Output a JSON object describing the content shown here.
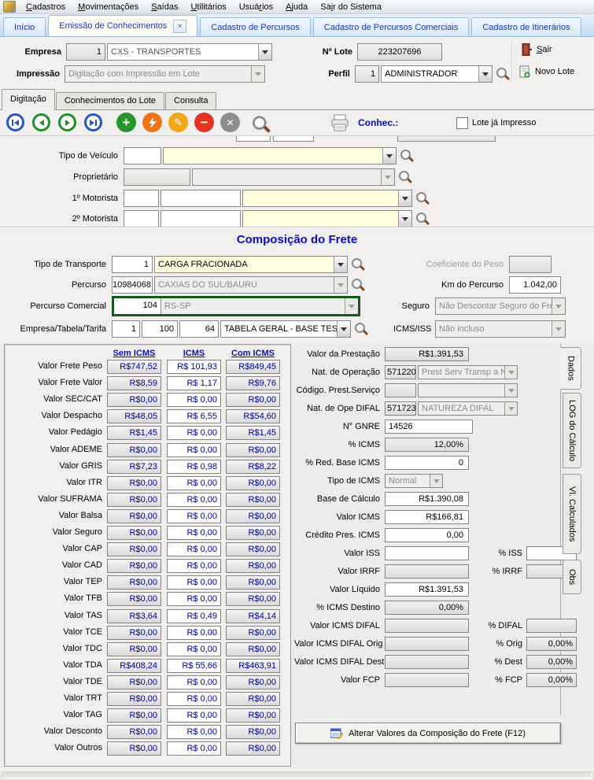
{
  "menu": {
    "items": [
      {
        "label": "Cadastros",
        "accel": 0
      },
      {
        "label": "Movimentações",
        "accel": 0
      },
      {
        "label": "Saídas",
        "accel": 0
      },
      {
        "label": "Utilitários",
        "accel": 0
      },
      {
        "label": "Usuários",
        "accel": 4
      },
      {
        "label": "Ajuda",
        "accel": 0
      },
      {
        "label": "Sair do Sistema",
        "accel": 2
      }
    ]
  },
  "tabs": [
    {
      "label": "Início",
      "active": false,
      "closable": false
    },
    {
      "label": "Emissão de Conhecimentos",
      "active": true,
      "closable": true
    },
    {
      "label": "Cadastro de Percursos",
      "active": false,
      "closable": false
    },
    {
      "label": "Cadastro de Percursos Comerciais",
      "active": false,
      "closable": false
    },
    {
      "label": "Cadastro de Itinerários",
      "active": false,
      "closable": false
    }
  ],
  "header": {
    "empresa_label": "Empresa",
    "empresa_code": "1",
    "empresa_name": "CXS - TRANSPORTES",
    "lote_label": "Nº Lote",
    "lote_value": "223207696",
    "impressao_label": "Impressão",
    "impressao_value": "Digitação com Impressão em Lote",
    "perfil_label": "Perfil",
    "perfil_code": "1",
    "perfil_name": "ADMINISTRADOR",
    "sair_label": "Sair",
    "sair_accel": 0,
    "novo_lote_label": "Novo Lote"
  },
  "subtabs": [
    {
      "label": "Digitação",
      "active": true
    },
    {
      "label": "Conhecimentos do Lote",
      "active": false
    },
    {
      "label": "Consulta",
      "active": false
    }
  ],
  "toolbar": {
    "conhec_label": "Conhec.:",
    "lote_impresso_label": "Lote já Impresso",
    "checkbox_checked": false
  },
  "vehicle": {
    "tipo_veiculo_label": "Tipo de Veículo",
    "tipo_veiculo_code": "",
    "tipo_veiculo_name": "",
    "proprietario_label": "Proprietário",
    "proprietario_code": "",
    "proprietario_name": "",
    "motorista1_label": "1º Motorista",
    "motorista1_code": "",
    "motorista1_doc": "",
    "motorista1_name": "",
    "motorista2_label": "2º Motorista",
    "motorista2_code": "",
    "motorista2_doc": "",
    "motorista2_name": ""
  },
  "frete": {
    "title": "Composição do Frete",
    "tipo_transporte_label": "Tipo de Transporte",
    "tipo_transporte_code": "1",
    "tipo_transporte_name": "CARGA FRACIONADA",
    "coeficiente_peso_label": "Coeficiente do Peso",
    "coeficiente_peso_value": "",
    "percurso_label": "Percurso",
    "percurso_code": "10984068",
    "percurso_name": "CAXIAS DO SUL/BAURU",
    "km_percurso_label": "Km do Percurso",
    "km_percurso_value": "1.042,00",
    "percurso_comercial_label": "Percurso Comercial",
    "percurso_comercial_code": "104",
    "percurso_comercial_name": "RS-SP",
    "seguro_label": "Seguro",
    "seguro_value": "Não Descontar Seguro do Frete P",
    "empresa_tabela_label": "Empresa/Tabela/Tarifa",
    "empresa_val": "1",
    "tabela_val": "100",
    "tarifa_val": "64",
    "tabela_name": "TABELA GERAL - BASE TESTE",
    "icms_iss_label": "ICMS/ISS",
    "icms_iss_value": "Não incluso"
  },
  "totals_table": {
    "headers": [
      "Sem ICMS",
      "ICMS",
      "Com ICMS"
    ],
    "rows": [
      {
        "label": "Valor Frete Peso",
        "sem": "R$747,52",
        "icms": "R$ 101,93",
        "com": "R$849,45"
      },
      {
        "label": "Valor Frete Valor",
        "sem": "R$8,59",
        "icms": "R$ 1,17",
        "com": "R$9,76"
      },
      {
        "label": "Valor SEC/CAT",
        "sem": "R$0,00",
        "icms": "R$ 0,00",
        "com": "R$0,00"
      },
      {
        "label": "Valor Despacho",
        "sem": "R$48,05",
        "icms": "R$ 6,55",
        "com": "R$54,60"
      },
      {
        "label": "Valor Pedágio",
        "sem": "R$1,45",
        "icms": "R$ 0,00",
        "com": "R$1,45"
      },
      {
        "label": "Valor ADEME",
        "sem": "R$0,00",
        "icms": "R$ 0,00",
        "com": "R$0,00"
      },
      {
        "label": "Valor GRIS",
        "sem": "R$7,23",
        "icms": "R$ 0,98",
        "com": "R$8,22"
      },
      {
        "label": "Valor ITR",
        "sem": "R$0,00",
        "icms": "R$ 0,00",
        "com": "R$0,00"
      },
      {
        "label": "Valor SUFRAMA",
        "sem": "R$0,00",
        "icms": "R$ 0,00",
        "com": "R$0,00"
      },
      {
        "label": "Valor Balsa",
        "sem": "R$0,00",
        "icms": "R$ 0,00",
        "com": "R$0,00"
      },
      {
        "label": "Valor Seguro",
        "sem": "R$0,00",
        "icms": "R$ 0,00",
        "com": "R$0,00"
      },
      {
        "label": "Valor CAP",
        "sem": "R$0,00",
        "icms": "R$ 0,00",
        "com": "R$0,00"
      },
      {
        "label": "Valor CAD",
        "sem": "R$0,00",
        "icms": "R$ 0,00",
        "com": "R$0,00"
      },
      {
        "label": "Valor TEP",
        "sem": "R$0,00",
        "icms": "R$ 0,00",
        "com": "R$0,00"
      },
      {
        "label": "Valor TFB",
        "sem": "R$0,00",
        "icms": "R$ 0,00",
        "com": "R$0,00"
      },
      {
        "label": "Valor TAS",
        "sem": "R$3,64",
        "icms": "R$ 0,49",
        "com": "R$4,14"
      },
      {
        "label": "Valor TCE",
        "sem": "R$0,00",
        "icms": "R$ 0,00",
        "com": "R$0,00"
      },
      {
        "label": "Valor TDC",
        "sem": "R$0,00",
        "icms": "R$ 0,00",
        "com": "R$0,00"
      },
      {
        "label": "Valor TDA",
        "sem": "R$408,24",
        "icms": "R$ 55,66",
        "com": "R$463,91"
      },
      {
        "label": "Valor TDE",
        "sem": "R$0,00",
        "icms": "R$ 0,00",
        "com": "R$0,00"
      },
      {
        "label": "Valor TRT",
        "sem": "R$0,00",
        "icms": "R$ 0,00",
        "com": "R$0,00"
      },
      {
        "label": "Valor TAG",
        "sem": "R$0,00",
        "icms": "R$ 0,00",
        "com": "R$0,00"
      },
      {
        "label": "Valor Desconto",
        "sem": "R$0,00",
        "icms": "R$ 0,00",
        "com": "R$0,00"
      },
      {
        "label": "Valor Outros",
        "sem": "R$0,00",
        "icms": "R$ 0,00",
        "com": "R$0,00"
      }
    ]
  },
  "right_panel": {
    "prestacao": {
      "label": "Valor da Prestação",
      "value": "R$1.391,53"
    },
    "nat_operacao": {
      "label": "Nat. de Operação",
      "code": "571220",
      "name": "Prest Serv Transp a N"
    },
    "cod_prest": {
      "label": "Código. Prest.Serviço",
      "code": "",
      "name": ""
    },
    "nat_difal": {
      "label": "Nat. de Ope DIFAL",
      "code": "571723",
      "name": "NATUREZA DIFAL"
    },
    "gnre": {
      "label": "N° GNRE",
      "value": "14526"
    },
    "perc_icms": {
      "label": "% ICMS",
      "value": "12,00%"
    },
    "perc_red": {
      "label": "% Red. Base ICMS",
      "value": "0"
    },
    "tipo_icms": {
      "label": "Tipo de ICMS",
      "value": "Normal"
    },
    "base_calc": {
      "label": "Base de Cálculo",
      "value": "R$1.390,08"
    },
    "valor_icms": {
      "label": "Valor ICMS",
      "value": "R$166,81"
    },
    "credito": {
      "label": "Crédito Pres. ICMS",
      "value": "0,00"
    },
    "iss": {
      "label": "Valor ISS",
      "value": "",
      "pct_label": "% ISS",
      "pct_value": ""
    },
    "irrf": {
      "label": "Valor IRRF",
      "value": "",
      "pct_label": "% IRRF",
      "pct_value": ""
    },
    "liquido": {
      "label": "Valor Líquido",
      "value": "R$1.391,53"
    },
    "icms_destino": {
      "label": "% ICMS Destino",
      "value": "0,00%"
    },
    "difal": {
      "label": "Valor ICMS DIFAL",
      "value": "",
      "pct_label": "% DIFAL",
      "pct_value": ""
    },
    "difal_orig": {
      "label": "Valor ICMS DIFAL Orig",
      "value": "",
      "pct_label": "% Orig",
      "pct_value": "0,00%"
    },
    "difal_dest": {
      "label": "Valor ICMS DIFAL Dest",
      "value": "",
      "pct_label": "% Dest",
      "pct_value": "0,00%"
    },
    "fcp": {
      "label": "Valor FCP",
      "value": "",
      "pct_label": "% FCP",
      "pct_value": "0,00%"
    }
  },
  "side_tabs": [
    {
      "label": "Dados",
      "active": true
    },
    {
      "label": "LOG do Cálculo",
      "active": false
    },
    {
      "label": "Vl. Calculados",
      "active": false
    },
    {
      "label": "Obs",
      "active": false
    }
  ],
  "footer": {
    "alterar_button": "Alterar Valores da Composição do Frete (F12)"
  }
}
